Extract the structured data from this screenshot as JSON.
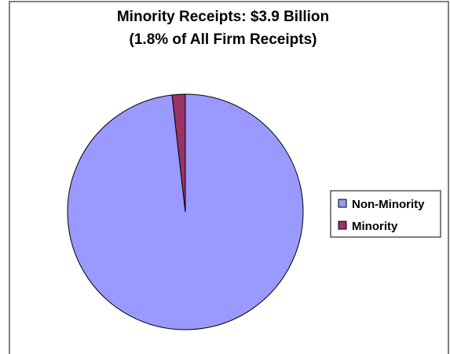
{
  "chart_data": {
    "type": "pie",
    "title_lines": [
      "Minority Receipts: $3.9 Billion",
      "(1.8% of All Firm Receipts)"
    ],
    "categories": [
      "Non-Minority",
      "Minority"
    ],
    "values": [
      98.2,
      1.8
    ],
    "unit": "percent of all firm receipts",
    "colors": [
      "#9999ff",
      "#993366"
    ],
    "edge_color": "#000000",
    "legend": {
      "placement": "right",
      "labels": [
        "Non-Minority",
        "Minority"
      ]
    }
  }
}
